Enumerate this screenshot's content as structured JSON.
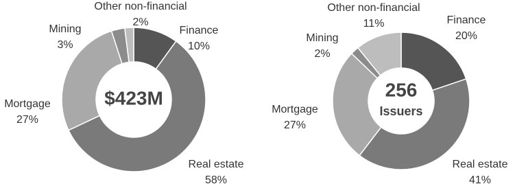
{
  "chart_data": [
    {
      "type": "donut",
      "center_label": [
        "$423M"
      ],
      "categories": [
        "Finance",
        "Real estate",
        "Mortgage",
        "Mining",
        "Other non-financial"
      ],
      "values": [
        10,
        58,
        27,
        3,
        2
      ],
      "value_labels": [
        "10%",
        "58%",
        "27%",
        "3%",
        "2%"
      ],
      "colors": [
        "#555555",
        "#7a7a7a",
        "#a9a9a9",
        "#8c8c8c",
        "#bdbdbd"
      ]
    },
    {
      "type": "donut",
      "center_label": [
        "256",
        "Issuers"
      ],
      "categories": [
        "Finance",
        "Real estate",
        "Mortgage",
        "Mining",
        "Other non-financial"
      ],
      "values": [
        20,
        41,
        27,
        2,
        11
      ],
      "value_labels": [
        "20%",
        "41%",
        "27%",
        "2%",
        "11%"
      ],
      "colors": [
        "#555555",
        "#7a7a7a",
        "#a9a9a9",
        "#8c8c8c",
        "#bdbdbd"
      ]
    }
  ]
}
